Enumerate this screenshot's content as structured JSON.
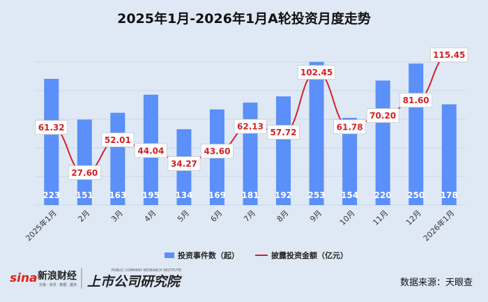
{
  "chart_data": {
    "type": "bar",
    "title": "2025年1月-2026年1月A轮投资月度走势",
    "categories": [
      "2025年1月",
      "2月",
      "3月",
      "4月",
      "5月",
      "6月",
      "7月",
      "8月",
      "9月",
      "10月",
      "11月",
      "12月",
      "2026年1月"
    ],
    "series": [
      {
        "name": "投资事件数（起）",
        "type": "bar",
        "color": "#5b8ff9",
        "values": [
          223,
          151,
          163,
          195,
          134,
          169,
          181,
          192,
          253,
          154,
          220,
          250,
          178
        ]
      },
      {
        "name": "披露投资金额（亿元）",
        "type": "line",
        "color": "#d32027",
        "values": [
          61.32,
          27.6,
          52.01,
          44.04,
          34.27,
          43.6,
          62.13,
          57.72,
          102.45,
          61.78,
          70.2,
          81.6,
          115.45
        ]
      }
    ],
    "bar_labels": [
      "223",
      "151",
      "163",
      "195",
      "134",
      "169",
      "181",
      "192",
      "253",
      "154",
      "220",
      "250",
      "178"
    ],
    "line_labels": [
      "61.32",
      "27.60",
      "52.01",
      "44.04",
      "34.27",
      "43.60",
      "62.13",
      "57.72",
      "102.45",
      "61.78",
      "70.20",
      "81.60",
      "115.45"
    ],
    "legend": [
      "投资事件数（起）",
      "披露投资金额（亿元）"
    ],
    "legend_position": "bottom",
    "grid": true
  },
  "footer": {
    "brand_sina": "sina",
    "brand_sina_cn": "新浪财经",
    "brand_sina_sub": "交易 · 资讯 · 数据 · 服务",
    "brand_institute": "上市公司研究院",
    "brand_institute_sub": "PUBLIC COMPANY RESEARCH INSTITUTE",
    "source": "数据来源：天眼查"
  }
}
